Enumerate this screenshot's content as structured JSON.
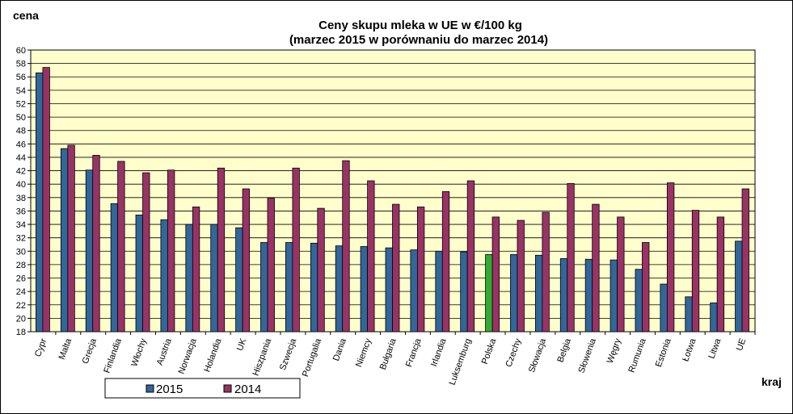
{
  "chart_data": {
    "type": "bar",
    "title": "Ceny skupu mleka  w UE w €/100 kg",
    "subtitle": "(marzec 2015 w porównaniu do marzec 2014)",
    "ylabel": "cena",
    "xlabel": "kraj",
    "ylim": [
      18,
      60
    ],
    "ytick_step": 2,
    "grid": true,
    "legend_position": "bottom-left",
    "categories": [
      "Cypr",
      "Malta",
      "Grecja",
      "Finlandia",
      "Włochy",
      "Austria",
      "Norwacja",
      "Holandia",
      "UK",
      "Hiszpania",
      "Szwecja",
      "Portugalia",
      "Dania",
      "Niemcy",
      "Bułgaria",
      "Francja",
      "Irlandia",
      "Luksemburg",
      "Polska",
      "Czechy",
      "Słowacja",
      "Belgia",
      "Słowenia",
      "Węgry",
      "Rumunia",
      "Estonia",
      "Łotwa",
      "Litwa",
      "UE"
    ],
    "series": [
      {
        "name": "2015",
        "color": "#336699",
        "values": [
          56.6,
          45.3,
          42.1,
          37.1,
          35.4,
          34.7,
          34.0,
          34.0,
          33.5,
          31.3,
          31.3,
          31.2,
          30.8,
          30.7,
          30.5,
          30.2,
          30.0,
          29.9,
          29.5,
          29.5,
          29.4,
          28.9,
          28.8,
          28.7,
          27.3,
          25.1,
          23.2,
          22.3,
          31.5
        ]
      },
      {
        "name": "2014",
        "color": "#993366",
        "values": [
          57.4,
          45.8,
          44.3,
          43.4,
          41.7,
          42.1,
          36.6,
          42.4,
          39.3,
          37.9,
          42.4,
          36.4,
          43.5,
          40.5,
          37.0,
          36.6,
          38.9,
          40.5,
          35.1,
          34.6,
          35.8,
          40.1,
          37.0,
          35.1,
          31.3,
          40.2,
          36.1,
          35.1,
          39.3
        ]
      }
    ],
    "highlight": {
      "category": "Polska",
      "series": "2015",
      "color": "#33aa33"
    },
    "plot_background": "#ffffcc"
  }
}
